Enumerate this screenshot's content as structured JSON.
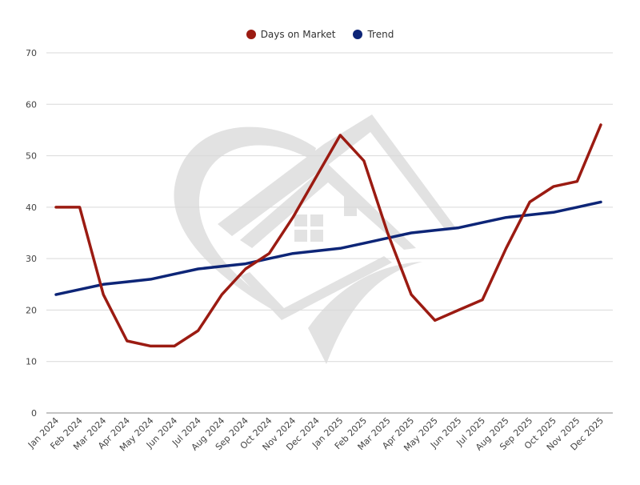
{
  "chart_data": {
    "type": "line",
    "title": "",
    "xlabel": "",
    "ylabel": "",
    "ylim": [
      0,
      70
    ],
    "yticks": [
      0,
      10,
      20,
      30,
      40,
      50,
      60,
      70
    ],
    "grid": true,
    "legend_position": "top",
    "categories": [
      "Jan 2024",
      "Feb 2024",
      "Mar 2024",
      "Apr 2024",
      "May 2024",
      "Jun 2024",
      "Jul 2024",
      "Aug 2024",
      "Sep 2024",
      "Oct 2024",
      "Nov 2024",
      "Dec 2024",
      "Jan 2025",
      "Feb 2025",
      "Mar 2025",
      "Apr 2025",
      "May 2025",
      "Jun 2025",
      "Jul 2025",
      "Aug 2025",
      "Sep 2025",
      "Oct 2025",
      "Nov 2025",
      "Dec 2025"
    ],
    "series": [
      {
        "name": "Days on Market",
        "color": "#9b1b12",
        "values": [
          40,
          40,
          23,
          14,
          13,
          13,
          16,
          23,
          28,
          31,
          38,
          46,
          54,
          49,
          35,
          23,
          18,
          20,
          22,
          32,
          41,
          44,
          45,
          56
        ]
      },
      {
        "name": "Trend",
        "color": "#0d2577",
        "values": [
          23,
          24,
          25,
          25.5,
          26,
          27,
          28,
          28.5,
          29,
          30,
          31,
          31.5,
          32,
          33,
          34,
          35,
          35.5,
          36,
          37,
          38,
          38.5,
          39,
          40,
          41
        ]
      }
    ]
  },
  "legend": {
    "items": [
      {
        "label": "Days on Market",
        "color": "#9b1b12"
      },
      {
        "label": "Trend",
        "color": "#0d2577"
      }
    ]
  },
  "watermark": {
    "icon": "house-heart-logo-icon"
  }
}
